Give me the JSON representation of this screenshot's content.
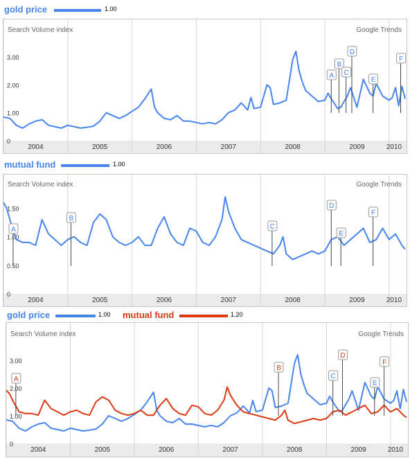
{
  "chart_data": [
    {
      "type": "line",
      "legend": [
        {
          "term": "gold price",
          "value": "1.00",
          "color": "#4684ee"
        }
      ],
      "header_left": "Search Volume index",
      "header_right": "Google Trends",
      "y_ticks": [
        "0",
        "1.00",
        "2.00",
        "3.00"
      ],
      "ylim": [
        0,
        3.6
      ],
      "x_labels": [
        "2004",
        "2005",
        "2006",
        "2007",
        "2008",
        "2009",
        "2010"
      ],
      "xlim": [
        2004.0,
        2010.25
      ],
      "series": [
        {
          "name": "gold price",
          "color": "#4684ee",
          "x": [
            2004.0,
            2004.1,
            2004.2,
            2004.3,
            2004.4,
            2004.5,
            2004.6,
            2004.7,
            2004.8,
            2004.9,
            2005.0,
            2005.1,
            2005.2,
            2005.3,
            2005.4,
            2005.5,
            2005.6,
            2005.7,
            2005.8,
            2005.9,
            2006.0,
            2006.1,
            2006.2,
            2006.3,
            2006.35,
            2006.4,
            2006.5,
            2006.6,
            2006.7,
            2006.8,
            2006.9,
            2007.0,
            2007.1,
            2007.2,
            2007.3,
            2007.4,
            2007.5,
            2007.6,
            2007.7,
            2007.8,
            2007.85,
            2007.9,
            2008.0,
            2008.1,
            2008.15,
            2008.2,
            2008.3,
            2008.4,
            2008.5,
            2008.55,
            2008.6,
            2008.65,
            2008.7,
            2008.8,
            2008.9,
            2009.0,
            2009.05,
            2009.1,
            2009.2,
            2009.25,
            2009.3,
            2009.35,
            2009.4,
            2009.5,
            2009.6,
            2009.7,
            2009.75,
            2009.8,
            2009.9,
            2010.0,
            2010.05,
            2010.1,
            2010.15,
            2010.2,
            2010.25
          ],
          "y": [
            0.85,
            0.8,
            0.55,
            0.45,
            0.6,
            0.7,
            0.75,
            0.55,
            0.5,
            0.45,
            0.55,
            0.5,
            0.45,
            0.48,
            0.52,
            0.7,
            1.0,
            0.9,
            0.8,
            0.9,
            1.05,
            1.2,
            1.5,
            1.85,
            1.2,
            1.0,
            0.8,
            0.75,
            0.9,
            0.7,
            0.7,
            0.65,
            0.6,
            0.65,
            0.6,
            0.75,
            1.0,
            1.1,
            1.35,
            1.1,
            1.55,
            1.15,
            1.2,
            2.0,
            1.9,
            1.3,
            1.35,
            1.45,
            2.9,
            3.2,
            2.5,
            2.1,
            1.8,
            1.6,
            1.4,
            1.45,
            1.7,
            1.5,
            1.15,
            1.2,
            1.4,
            1.6,
            1.9,
            1.2,
            2.2,
            1.7,
            1.6,
            2.05,
            1.6,
            1.45,
            1.55,
            1.9,
            1.25,
            1.95,
            1.5
          ]
        }
      ],
      "annotations": [
        {
          "label": "A",
          "x": 2009.1,
          "color": "#4684ee"
        },
        {
          "label": "B",
          "x": 2009.22,
          "color": "#4684ee"
        },
        {
          "label": "C",
          "x": 2009.33,
          "color": "#4684ee"
        },
        {
          "label": "D",
          "x": 2009.42,
          "color": "#4684ee"
        },
        {
          "label": "E",
          "x": 2009.75,
          "color": "#4684ee"
        },
        {
          "label": "F",
          "x": 2010.18,
          "color": "#4684ee"
        }
      ]
    },
    {
      "type": "line",
      "legend": [
        {
          "term": "mutual fund",
          "value": "1.00",
          "color": "#4684ee"
        }
      ],
      "header_left": "Search Volume index",
      "header_right": "Google Trends",
      "y_ticks": [
        "0",
        "0.50",
        "1.00",
        "1.50"
      ],
      "ylim": [
        0,
        1.75
      ],
      "x_labels": [
        "2004",
        "2005",
        "2006",
        "2007",
        "2008",
        "2009",
        "2010"
      ],
      "xlim": [
        2004.0,
        2010.25
      ],
      "series": [
        {
          "name": "mutual fund",
          "color": "#4684ee",
          "x": [
            2004.0,
            2004.05,
            2004.1,
            2004.2,
            2004.3,
            2004.4,
            2004.5,
            2004.6,
            2004.7,
            2004.8,
            2004.9,
            2005.0,
            2005.1,
            2005.2,
            2005.3,
            2005.4,
            2005.5,
            2005.6,
            2005.7,
            2005.8,
            2005.9,
            2006.0,
            2006.1,
            2006.2,
            2006.3,
            2006.4,
            2006.5,
            2006.6,
            2006.7,
            2006.8,
            2006.9,
            2007.0,
            2007.1,
            2007.2,
            2007.3,
            2007.4,
            2007.45,
            2007.5,
            2007.6,
            2007.7,
            2007.8,
            2007.9,
            2008.0,
            2008.1,
            2008.2,
            2008.3,
            2008.35,
            2008.4,
            2008.5,
            2008.6,
            2008.7,
            2008.8,
            2008.9,
            2009.0,
            2009.1,
            2009.2,
            2009.3,
            2009.4,
            2009.5,
            2009.6,
            2009.7,
            2009.8,
            2009.9,
            2010.0,
            2010.1,
            2010.2,
            2010.25
          ],
          "y": [
            1.6,
            1.5,
            1.3,
            0.95,
            0.9,
            0.9,
            0.85,
            1.3,
            1.05,
            0.95,
            0.85,
            0.95,
            1.0,
            0.9,
            0.85,
            1.25,
            1.4,
            1.3,
            1.0,
            0.9,
            0.85,
            0.9,
            1.0,
            0.85,
            0.85,
            1.15,
            1.35,
            1.05,
            0.9,
            0.85,
            1.15,
            1.1,
            0.9,
            0.85,
            1.0,
            1.3,
            1.7,
            1.45,
            1.15,
            0.95,
            0.9,
            0.85,
            0.8,
            0.75,
            0.7,
            0.85,
            1.0,
            0.7,
            0.6,
            0.65,
            0.7,
            0.75,
            0.7,
            0.75,
            0.95,
            1.0,
            0.85,
            0.95,
            1.05,
            1.15,
            0.9,
            0.95,
            1.15,
            0.95,
            1.05,
            0.85,
            0.78
          ]
        }
      ],
      "annotations": [
        {
          "label": "A",
          "x": 2004.15,
          "color": "#4684ee"
        },
        {
          "label": "B",
          "x": 2005.05,
          "color": "#4684ee"
        },
        {
          "label": "C",
          "x": 2008.18,
          "color": "#4684ee"
        },
        {
          "label": "D",
          "x": 2009.1,
          "color": "#4684ee"
        },
        {
          "label": "E",
          "x": 2009.25,
          "color": "#4684ee"
        },
        {
          "label": "F",
          "x": 2009.75,
          "color": "#4684ee"
        }
      ]
    },
    {
      "type": "line",
      "legend": [
        {
          "term": "gold price",
          "value": "1.00",
          "color": "#4684ee"
        },
        {
          "term": "mutual fund",
          "value": "1.20",
          "color": "#dc3912"
        }
      ],
      "header_left": "Search Volume index",
      "header_right": "Google Trends",
      "y_ticks": [
        "0",
        "1.00",
        "2.00",
        "3.00"
      ],
      "ylim": [
        0,
        3.6
      ],
      "x_labels": [
        "2004",
        "2005",
        "2006",
        "2007",
        "2008",
        "2009",
        "2010"
      ],
      "xlim": [
        2004.0,
        2010.25
      ],
      "series": [
        {
          "name": "gold price",
          "color": "#4684ee",
          "x": [
            2004.0,
            2004.1,
            2004.2,
            2004.3,
            2004.4,
            2004.5,
            2004.6,
            2004.7,
            2004.8,
            2004.9,
            2005.0,
            2005.1,
            2005.2,
            2005.3,
            2005.4,
            2005.5,
            2005.6,
            2005.7,
            2005.8,
            2005.9,
            2006.0,
            2006.1,
            2006.2,
            2006.3,
            2006.35,
            2006.4,
            2006.5,
            2006.6,
            2006.7,
            2006.8,
            2006.9,
            2007.0,
            2007.1,
            2007.2,
            2007.3,
            2007.4,
            2007.5,
            2007.6,
            2007.7,
            2007.8,
            2007.85,
            2007.9,
            2008.0,
            2008.1,
            2008.15,
            2008.2,
            2008.3,
            2008.4,
            2008.5,
            2008.55,
            2008.6,
            2008.65,
            2008.7,
            2008.8,
            2008.9,
            2009.0,
            2009.05,
            2009.1,
            2009.2,
            2009.25,
            2009.3,
            2009.35,
            2009.4,
            2009.5,
            2009.6,
            2009.7,
            2009.75,
            2009.8,
            2009.9,
            2010.0,
            2010.05,
            2010.1,
            2010.15,
            2010.2,
            2010.25
          ],
          "y": [
            0.85,
            0.8,
            0.55,
            0.45,
            0.6,
            0.7,
            0.75,
            0.55,
            0.5,
            0.45,
            0.55,
            0.5,
            0.45,
            0.48,
            0.52,
            0.7,
            1.0,
            0.9,
            0.8,
            0.9,
            1.05,
            1.2,
            1.5,
            1.85,
            1.2,
            1.0,
            0.8,
            0.75,
            0.9,
            0.7,
            0.7,
            0.65,
            0.6,
            0.65,
            0.6,
            0.75,
            1.0,
            1.1,
            1.35,
            1.1,
            1.55,
            1.15,
            1.2,
            2.0,
            1.9,
            1.3,
            1.35,
            1.45,
            2.9,
            3.2,
            2.5,
            2.1,
            1.8,
            1.6,
            1.4,
            1.45,
            1.7,
            1.5,
            1.15,
            1.2,
            1.4,
            1.6,
            1.9,
            1.2,
            2.2,
            1.7,
            1.6,
            2.05,
            1.6,
            1.45,
            1.55,
            1.9,
            1.25,
            1.95,
            1.5
          ]
        },
        {
          "name": "mutual fund",
          "color": "#dc3912",
          "x": [
            2004.0,
            2004.05,
            2004.1,
            2004.2,
            2004.3,
            2004.4,
            2004.5,
            2004.6,
            2004.7,
            2004.8,
            2004.9,
            2005.0,
            2005.1,
            2005.2,
            2005.3,
            2005.4,
            2005.5,
            2005.6,
            2005.7,
            2005.8,
            2005.9,
            2006.0,
            2006.1,
            2006.2,
            2006.3,
            2006.4,
            2006.5,
            2006.6,
            2006.7,
            2006.8,
            2006.9,
            2007.0,
            2007.1,
            2007.2,
            2007.3,
            2007.4,
            2007.45,
            2007.5,
            2007.6,
            2007.7,
            2007.8,
            2007.9,
            2008.0,
            2008.1,
            2008.2,
            2008.3,
            2008.35,
            2008.4,
            2008.5,
            2008.6,
            2008.7,
            2008.8,
            2008.9,
            2009.0,
            2009.1,
            2009.2,
            2009.3,
            2009.4,
            2009.5,
            2009.6,
            2009.7,
            2009.8,
            2009.9,
            2010.0,
            2010.1,
            2010.2,
            2010.25
          ],
          "y": [
            1.92,
            1.8,
            1.56,
            1.14,
            1.08,
            1.08,
            1.02,
            1.56,
            1.26,
            1.14,
            1.02,
            1.14,
            1.2,
            1.08,
            1.02,
            1.5,
            1.68,
            1.56,
            1.2,
            1.08,
            1.02,
            1.08,
            1.2,
            1.02,
            1.02,
            1.38,
            1.62,
            1.26,
            1.08,
            1.02,
            1.38,
            1.32,
            1.08,
            1.02,
            1.2,
            1.56,
            2.04,
            1.74,
            1.38,
            1.14,
            1.08,
            1.02,
            0.96,
            0.9,
            0.84,
            1.02,
            1.2,
            0.84,
            0.72,
            0.78,
            0.84,
            0.9,
            0.84,
            0.9,
            1.14,
            1.2,
            1.02,
            1.14,
            1.26,
            1.38,
            1.08,
            1.14,
            1.38,
            1.14,
            1.26,
            1.02,
            0.94
          ]
        }
      ],
      "annotations": [
        {
          "label": "A",
          "x": 2004.15,
          "color": "#dc3912"
        },
        {
          "label": "B",
          "x": 2008.25,
          "color": "#dc3912"
        },
        {
          "label": "C",
          "x": 2009.1,
          "color": "#4684ee"
        },
        {
          "label": "D",
          "x": 2009.25,
          "color": "#dc3912"
        },
        {
          "label": "E",
          "x": 2009.75,
          "color": "#4684ee"
        },
        {
          "label": "F",
          "x": 2009.9,
          "color": "#dc3912"
        }
      ]
    }
  ]
}
